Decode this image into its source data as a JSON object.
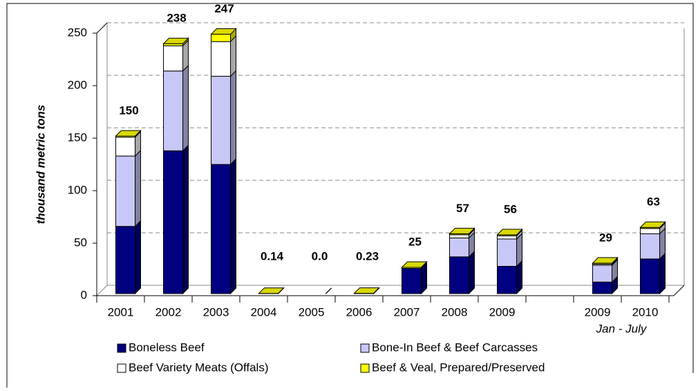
{
  "chart_data": {
    "type": "stacked_bar",
    "y_label": "thousand metric tons",
    "categories": [
      "2001",
      "2002",
      "2003",
      "2004",
      "2005",
      "2006",
      "2007",
      "2008",
      "2009",
      null,
      "2009",
      "2010"
    ],
    "annotation": "Jan - July",
    "series": [
      {
        "name": "Boneless Beef",
        "color": "#000080",
        "values": [
          64,
          136,
          123,
          0,
          0,
          0,
          24,
          35,
          26,
          null,
          11,
          33
        ]
      },
      {
        "name": "Bone-In Beef & Beef Carcasses",
        "color": "#c8c8f8",
        "values": [
          67,
          76,
          84,
          0,
          0,
          0,
          0,
          18,
          26,
          null,
          16,
          24
        ]
      },
      {
        "name": "Beef Variety Meats (Offals)",
        "color": "#ffffff",
        "values": [
          18,
          24,
          33,
          0,
          0,
          0,
          0,
          3,
          3,
          null,
          1,
          5
        ]
      },
      {
        "name": "Beef & Veal, Prepared/Preserved",
        "color": "#ffff00",
        "values": [
          1,
          2,
          7,
          0.14,
          0,
          0.23,
          1,
          1,
          1,
          null,
          1,
          1
        ]
      }
    ],
    "totals": [
      150,
      238,
      247,
      0.14,
      0,
      0.23,
      25,
      57,
      56,
      null,
      29,
      63
    ],
    "total_labels": [
      "150",
      "238",
      "247",
      "0.14",
      "0.0",
      "0.23",
      "25",
      "57",
      "56",
      null,
      "29",
      "63"
    ],
    "ylim": [
      0,
      250
    ],
    "yticks": [
      0,
      50,
      100,
      150,
      200,
      250
    ],
    "grid": true
  }
}
